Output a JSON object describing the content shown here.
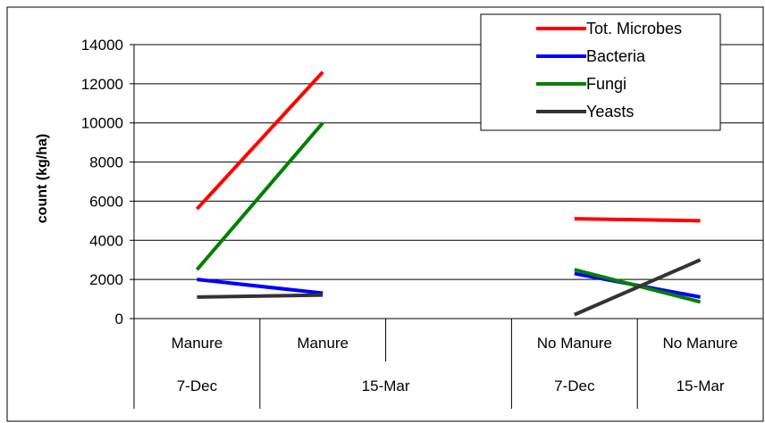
{
  "chart_data": {
    "type": "line",
    "ylabel": "count (kg/ha)",
    "xlabel": "",
    "ylim": [
      0,
      14000
    ],
    "yticks": [
      0,
      2000,
      4000,
      6000,
      8000,
      10000,
      12000,
      14000
    ],
    "grid": true,
    "legend_position": "top-right",
    "categories": [
      {
        "treatment": "Manure",
        "date": "7-Dec"
      },
      {
        "treatment": "Manure",
        "date": "15-Mar"
      },
      {
        "treatment": "",
        "date": ""
      },
      {
        "treatment": "No Manure",
        "date": "7-Dec"
      },
      {
        "treatment": "No Manure",
        "date": "15-Mar"
      }
    ],
    "date_groups": [
      {
        "label": "7-Dec"
      },
      {
        "label": "15-Mar"
      },
      {
        "label": "7-Dec"
      },
      {
        "label": "15-Mar"
      }
    ],
    "series": [
      {
        "name": "Tot. Microbes",
        "color": "#ff0000",
        "values": [
          5600,
          12600,
          null,
          5100,
          5000
        ]
      },
      {
        "name": "Bacteria",
        "color": "#0000ff",
        "values": [
          2000,
          1300,
          null,
          2300,
          1100
        ]
      },
      {
        "name": "Fungi",
        "color": "#008000",
        "values": [
          2500,
          10000,
          null,
          2500,
          850
        ]
      },
      {
        "name": "Yeasts",
        "color": "#333333",
        "values": [
          1100,
          1200,
          null,
          200,
          3000
        ]
      }
    ]
  }
}
